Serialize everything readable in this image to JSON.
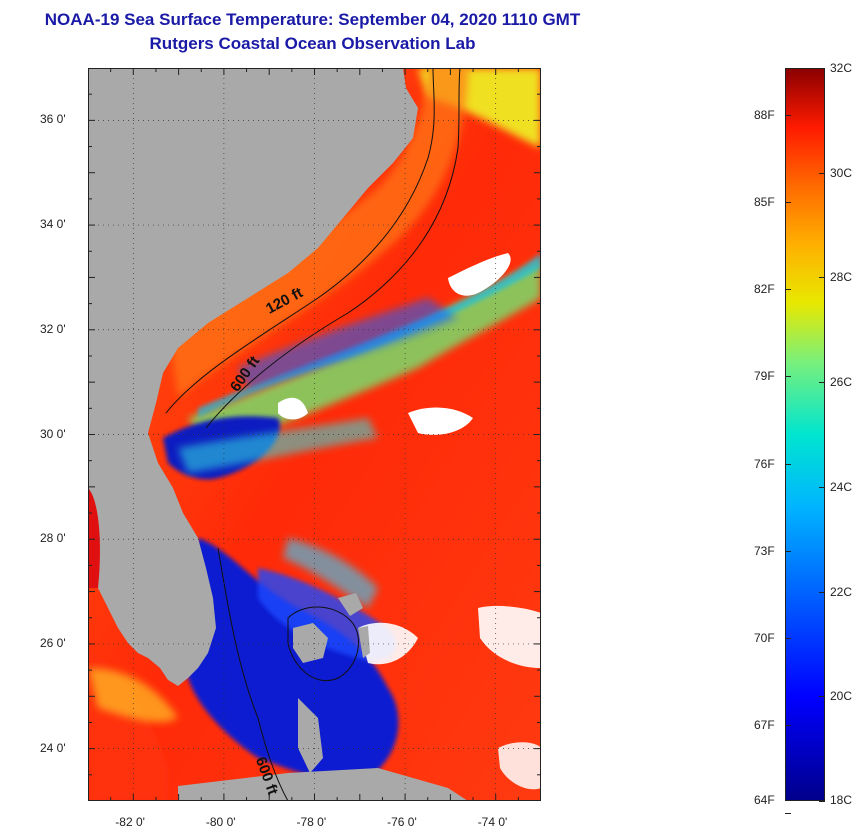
{
  "title": {
    "line1": "NOAA-19 Sea Surface Temperature:  September 04, 2020 1110 GMT",
    "line2": "Rutgers Coastal Ocean Observation Lab"
  },
  "map": {
    "lon_range": [
      -83.0,
      -73.0
    ],
    "lat_range": [
      23.0,
      37.0
    ],
    "lon_ticks": [
      {
        "value": -82,
        "label": "-82 0'"
      },
      {
        "value": -80,
        "label": "-80 0'"
      },
      {
        "value": -78,
        "label": "-78 0'"
      },
      {
        "value": -76,
        "label": "-76 0'"
      },
      {
        "value": -74,
        "label": "-74 0'"
      }
    ],
    "lat_ticks": [
      {
        "value": 24,
        "label": "24 0'"
      },
      {
        "value": 26,
        "label": "26 0'"
      },
      {
        "value": 28,
        "label": "28 0'"
      },
      {
        "value": 30,
        "label": "30 0'"
      },
      {
        "value": 32,
        "label": "32 0'"
      },
      {
        "value": 34,
        "label": "34 0'"
      },
      {
        "value": 36,
        "label": "36 0'"
      }
    ],
    "contour_labels": [
      {
        "label": "120 ft",
        "lon": -79.0,
        "lat": 32.3
      },
      {
        "label": "600 ft",
        "lon": -79.7,
        "lat": 30.8
      },
      {
        "label": "600 ft",
        "lon": -79.3,
        "lat": 23.8
      }
    ],
    "colors": {
      "land": "#a9a9a9",
      "cloud": "#ffffff",
      "warm": "#ff3a10",
      "cool": "#1030d0"
    }
  },
  "colorbar": {
    "celsius": [
      {
        "value": 18,
        "label": "18C"
      },
      {
        "value": 20,
        "label": "20C"
      },
      {
        "value": 22,
        "label": "22C"
      },
      {
        "value": 24,
        "label": "24C"
      },
      {
        "value": 26,
        "label": "26C"
      },
      {
        "value": 28,
        "label": "28C"
      },
      {
        "value": 30,
        "label": "30C"
      },
      {
        "value": 32,
        "label": "32C"
      }
    ],
    "fahrenheit": [
      {
        "value": 64,
        "label": "64F"
      },
      {
        "value": 67,
        "label": "67F"
      },
      {
        "value": 70,
        "label": "70F"
      },
      {
        "value": 73,
        "label": "73F"
      },
      {
        "value": 76,
        "label": "76F"
      },
      {
        "value": 79,
        "label": "79F"
      },
      {
        "value": 82,
        "label": "82F"
      },
      {
        "value": 85,
        "label": "85F"
      },
      {
        "value": 88,
        "label": "88F"
      }
    ],
    "range_c": [
      18,
      32
    ]
  }
}
